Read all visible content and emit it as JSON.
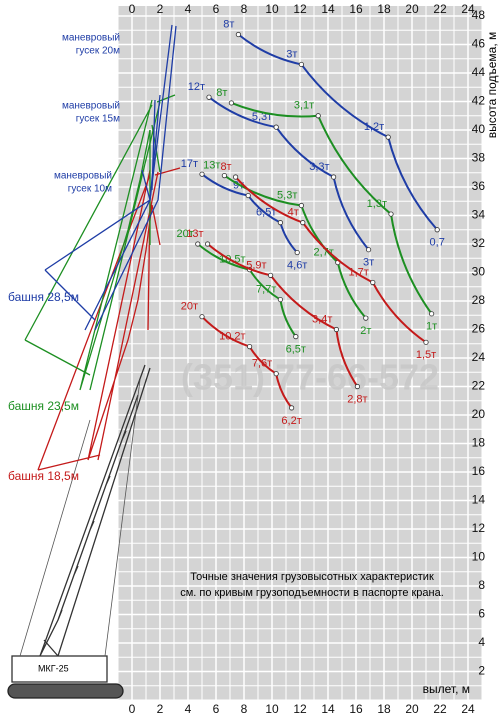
{
  "chart_data": {
    "type": "line",
    "xlabel": "вылет, м",
    "ylabel": "высота подъема, м",
    "xlim": [
      0,
      24
    ],
    "ylim": [
      0,
      48
    ],
    "xticks": [
      0,
      2,
      4,
      6,
      8,
      10,
      12,
      14,
      16,
      18,
      20,
      22,
      24
    ],
    "yticks": [
      2,
      4,
      6,
      8,
      10,
      12,
      14,
      16,
      18,
      20,
      22,
      24,
      26,
      28,
      30,
      32,
      34,
      36,
      38,
      40,
      42,
      44,
      46,
      48
    ],
    "grid": true,
    "series": [
      {
        "color": "#1f3da6",
        "x": [
          7.6,
          12.1,
          18.3,
          21.8
        ],
        "values": [
          46.7,
          44.6,
          39.5,
          33.0
        ],
        "value_labels": [
          "8т",
          "3т",
          "1,2т",
          "0,7"
        ]
      },
      {
        "color": "#1f3da6",
        "x": [
          5.5,
          10.3,
          14.4,
          16.9
        ],
        "values": [
          42.3,
          40.2,
          36.7,
          31.6
        ],
        "value_labels": [
          "12т",
          "5,3т",
          "3,3т",
          "3т"
        ]
      },
      {
        "color": "#1f3da6",
        "x": [
          5.0,
          8.3,
          10.6,
          11.8
        ],
        "values": [
          36.9,
          35.4,
          33.5,
          31.4
        ],
        "value_labels": [
          "17т",
          "9т",
          "6,5т",
          "4,6т"
        ]
      },
      {
        "color": "#1d8f22",
        "x": [
          7.1,
          13.3,
          18.5,
          21.4
        ],
        "values": [
          41.9,
          41.0,
          34.1,
          27.1
        ],
        "value_labels": [
          "8т",
          "3,1т",
          "1,3т",
          "1т"
        ]
      },
      {
        "color": "#1d8f22",
        "x": [
          6.6,
          12.1,
          14.7,
          16.7
        ],
        "values": [
          36.8,
          34.7,
          30.7,
          26.8
        ],
        "value_labels": [
          "13т",
          "5,3т",
          "2,7т",
          "2т"
        ]
      },
      {
        "color": "#1d8f22",
        "x": [
          4.7,
          8.4,
          10.6,
          11.7
        ],
        "values": [
          32.0,
          30.2,
          28.1,
          25.5
        ],
        "value_labels": [
          "20т",
          "10,5т",
          "7,7т",
          "6,5т"
        ]
      },
      {
        "color": "#c41a1a",
        "x": [
          7.4,
          12.2,
          17.2,
          21.0
        ],
        "values": [
          36.7,
          33.5,
          29.3,
          25.1
        ],
        "value_labels": [
          "8т",
          "4т",
          "1,7т",
          "1,5т"
        ]
      },
      {
        "color": "#c41a1a",
        "x": [
          5.4,
          9.9,
          14.6,
          16.1
        ],
        "values": [
          32.0,
          29.8,
          26.0,
          22.0
        ],
        "value_labels": [
          "13т",
          "5,9т",
          "3,4т",
          "2,8т"
        ]
      },
      {
        "color": "#c41a1a",
        "x": [
          5.0,
          8.4,
          10.3,
          11.4
        ],
        "values": [
          26.9,
          24.8,
          22.9,
          20.5
        ],
        "value_labels": [
          "20т",
          "10,2т",
          "7,6т",
          "6,2т"
        ]
      }
    ],
    "annotations": {
      "jib_20": [
        "маневровый",
        "гусек 20м"
      ],
      "jib_15": [
        "маневровый",
        "гусек 15м"
      ],
      "jib_10": [
        "маневровый",
        "гусек 10м"
      ],
      "tower_28": "башня 28,5м",
      "tower_23": "башня 23,5м",
      "tower_18": "башня 18,5м",
      "note": [
        "Точные значения грузовысотных характеристик",
        "см. по кривым грузоподъемности в паспорте крана."
      ],
      "phone": "(351) 77-66-572",
      "model": "МКГ-25"
    }
  }
}
